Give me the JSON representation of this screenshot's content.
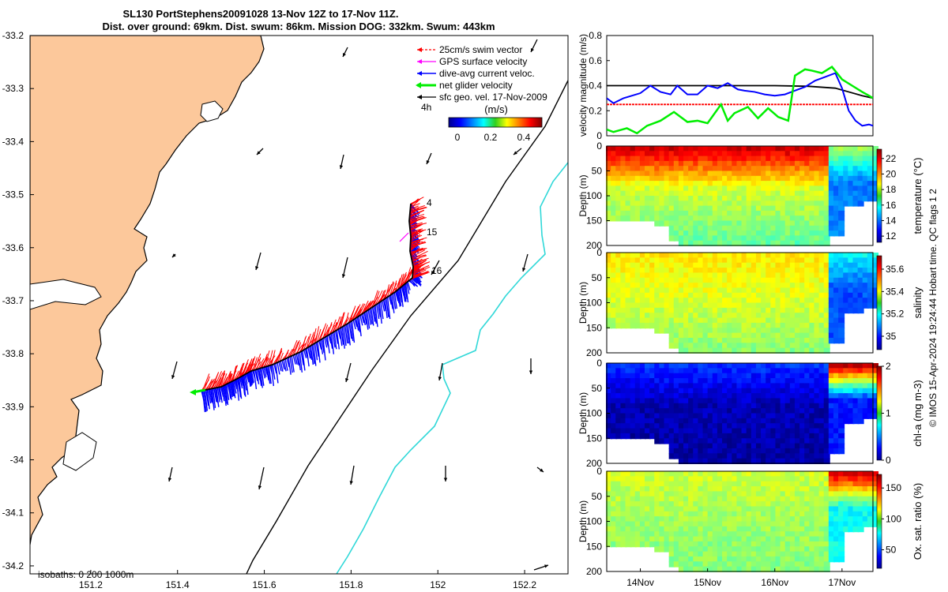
{
  "title": {
    "line1": "SL130 PortStephens20091028 13-Nov 12Z to 17-Nov 11Z.",
    "line2": "Dist. over ground: 69km. Dist. swum: 86km. Mission DOG: 332km. Swum: 443km"
  },
  "map": {
    "x_ticks": [
      "151.2",
      "151.4",
      "151.6",
      "151.8",
      "152",
      "152.2"
    ],
    "y_ticks": [
      "-33.2",
      "-33.3",
      "-33.4",
      "-33.5",
      "-33.6",
      "-33.7",
      "-33.8",
      "-33.9",
      "-34",
      "-34.1",
      "-34.2"
    ],
    "legend": [
      {
        "label": "25cm/s swim vector",
        "color": "#ff0000"
      },
      {
        "label": "GPS surface velocity",
        "color": "#ff00ff"
      },
      {
        "label": "dive-avg current veloc.",
        "color": "#0000ff"
      },
      {
        "label": "net glider velocity",
        "color": "#00ee00"
      },
      {
        "label": "sfc geo. vel. 17-Nov-2009",
        "color": "#000000"
      }
    ],
    "legend_extra": "4h",
    "colorbar_title": "(m/s)",
    "colorbar_ticks": [
      "0",
      "0.2",
      "0.4"
    ],
    "track_labels": [
      "4",
      "15",
      "16"
    ],
    "isobaths_label": "isobaths: 0   200  1000m",
    "colors": {
      "land": "#fcc89b",
      "track_fwd": "#ff0000",
      "track_back": "#0000ff",
      "isobath_200": "#000000",
      "isobath_1000": "#30d8d8"
    }
  },
  "chart_data": [
    {
      "type": "line",
      "ylabel": "velocity magnitude (m/s)",
      "ylim": [
        0,
        0.8
      ],
      "y_ticks": [
        "0",
        "0.2",
        "0.4",
        "0.6",
        "0.8"
      ],
      "xlim": [
        13.5,
        17.46
      ],
      "series": [
        {
          "name": "sfc geo. vel.",
          "color": "#000000",
          "x": [
            13.5,
            14.0,
            14.5,
            15.0,
            15.5,
            16.0,
            16.5,
            16.9,
            17.1,
            17.3,
            17.46
          ],
          "values": [
            0.4,
            0.4,
            0.4,
            0.4,
            0.4,
            0.4,
            0.395,
            0.38,
            0.35,
            0.32,
            0.3
          ]
        },
        {
          "name": "swim vector",
          "color": "#ff0000",
          "x": [
            13.5,
            17.46
          ],
          "values": [
            0.25,
            0.25
          ]
        },
        {
          "name": "dive-avg current",
          "color": "#0000ff",
          "x": [
            13.5,
            13.6,
            13.75,
            14.0,
            14.15,
            14.3,
            14.45,
            14.55,
            14.7,
            14.85,
            15.0,
            15.15,
            15.3,
            15.45,
            15.55,
            15.7,
            15.85,
            16.0,
            16.15,
            16.3,
            16.45,
            16.6,
            16.75,
            16.9,
            17.0,
            17.1,
            17.2,
            17.3,
            17.4,
            17.46
          ],
          "values": [
            0.3,
            0.26,
            0.3,
            0.34,
            0.4,
            0.35,
            0.33,
            0.4,
            0.33,
            0.33,
            0.4,
            0.38,
            0.42,
            0.37,
            0.36,
            0.35,
            0.33,
            0.32,
            0.33,
            0.36,
            0.39,
            0.44,
            0.47,
            0.5,
            0.38,
            0.2,
            0.12,
            0.08,
            0.09,
            0.08
          ]
        },
        {
          "name": "net glider velocity",
          "color": "#00ee00",
          "x": [
            13.5,
            13.6,
            13.8,
            13.95,
            14.1,
            14.3,
            14.5,
            14.7,
            14.85,
            15.0,
            15.2,
            15.3,
            15.4,
            15.6,
            15.75,
            15.9,
            16.05,
            16.2,
            16.3,
            16.45,
            16.55,
            16.7,
            16.85,
            17.0,
            17.15,
            17.3,
            17.4,
            17.46
          ],
          "values": [
            0.05,
            0.03,
            0.06,
            0.02,
            0.08,
            0.12,
            0.19,
            0.11,
            0.12,
            0.1,
            0.25,
            0.12,
            0.18,
            0.23,
            0.14,
            0.22,
            0.15,
            0.12,
            0.48,
            0.53,
            0.52,
            0.5,
            0.55,
            0.45,
            0.4,
            0.35,
            0.32,
            0.3
          ]
        }
      ]
    },
    {
      "type": "heatmap",
      "variable": "temperature",
      "ylabel": "Depth (m)",
      "y_ticks": [
        "0",
        "50",
        "100",
        "150",
        "200"
      ],
      "cbar_label": "temperature (°C)",
      "cbar_range": [
        11.2,
        23.2
      ],
      "cbar_ticks": [
        "12",
        "14",
        "16",
        "18",
        "20",
        "22"
      ],
      "surface_value": 22.3,
      "mid_value": 18.2,
      "deep_value": 15.8,
      "east_value": 14.2,
      "east_surface_value": 17.5,
      "max_depth_m": 200
    },
    {
      "type": "heatmap",
      "variable": "salinity",
      "ylabel": "Depth (m)",
      "y_ticks": [
        "0",
        "50",
        "100",
        "150",
        "200"
      ],
      "cbar_label": "salinity",
      "cbar_range": [
        34.88,
        35.72
      ],
      "cbar_ticks": [
        "35",
        "35.2",
        "35.4",
        "35.6"
      ],
      "surface_value": 35.42,
      "mid_value": 35.38,
      "deep_value": 35.25,
      "east_value": 35.05,
      "east_surface_value": 35.2,
      "max_depth_m": 200
    },
    {
      "type": "heatmap",
      "variable": "chl-a",
      "ylabel": "Depth (m)",
      "y_ticks": [
        "0",
        "50",
        "100",
        "150",
        "200"
      ],
      "cbar_label": "chl-a (mg m-3)",
      "cbar_range": [
        0,
        2
      ],
      "cbar_ticks": [
        "0",
        "1",
        "2"
      ],
      "surface_value": 0.35,
      "mid_value": 0.1,
      "deep_value": 0.05,
      "east_value": 0.3,
      "east_surface_value": 1.9,
      "max_depth_m": 200
    },
    {
      "type": "heatmap",
      "variable": "oxygen",
      "ylabel": "Depth (m)",
      "y_ticks": [
        "0",
        "50",
        "100",
        "150",
        "200"
      ],
      "cbar_label": "Ox. sat. ratio (%)",
      "cbar_range": [
        20,
        172
      ],
      "cbar_ticks": [
        "50",
        "100",
        "150"
      ],
      "surface_value": 108,
      "mid_value": 102,
      "deep_value": 92,
      "east_value": 78,
      "east_surface_value": 160,
      "max_depth_m": 200
    }
  ],
  "time_axis": {
    "labels": [
      "14Nov",
      "15Nov",
      "16Nov",
      "17Nov"
    ],
    "positions": [
      14,
      15,
      16,
      17
    ]
  },
  "credit": "© IMOS 15-Apr-2024 19:24:44 Hobart time. QC flags 1  2"
}
